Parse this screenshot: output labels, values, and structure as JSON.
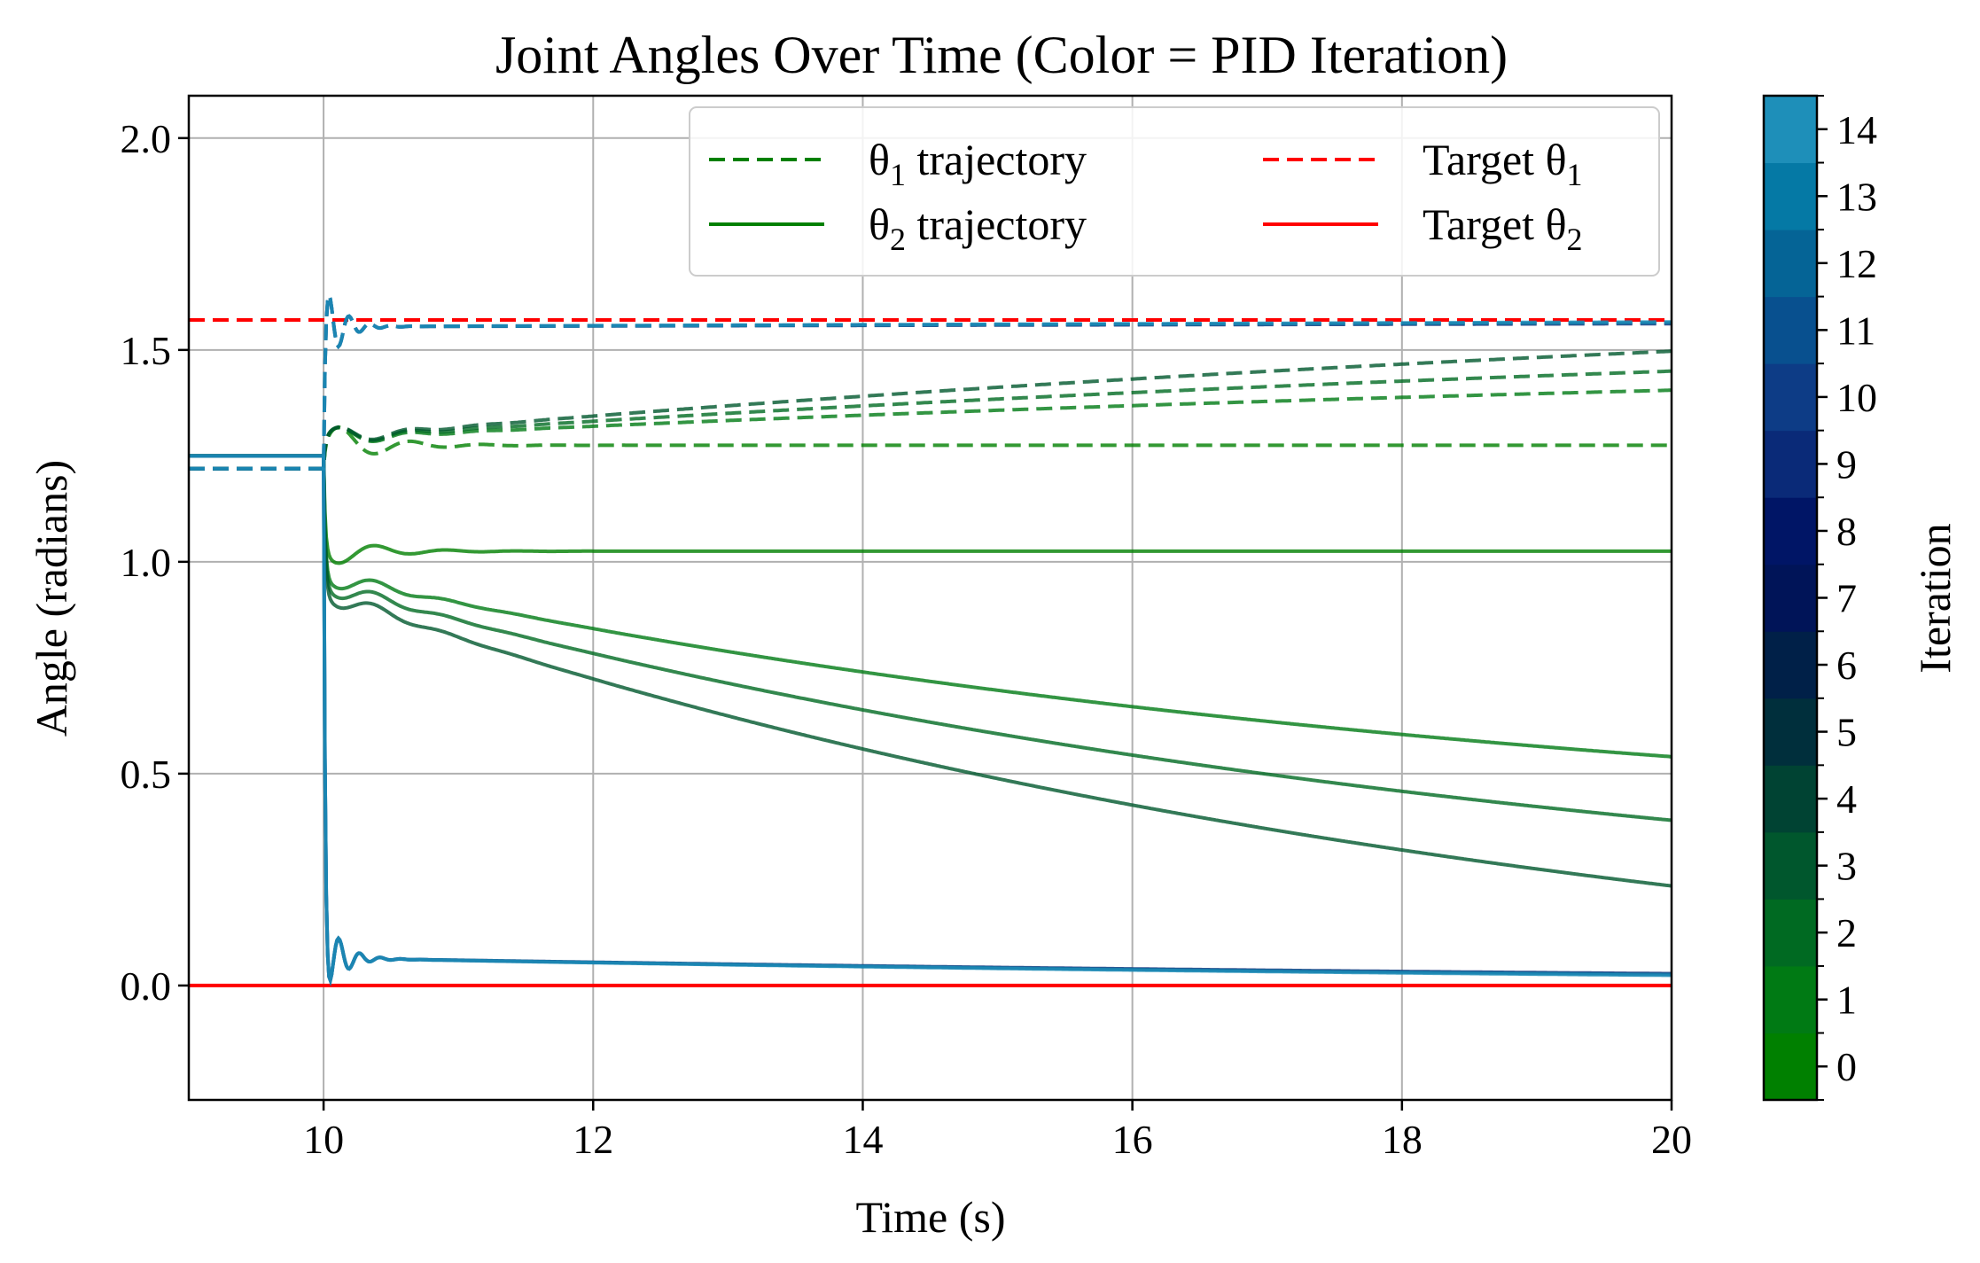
{
  "chart_data": {
    "type": "line",
    "title": "Joint Angles Over Time (Color = PID Iteration)",
    "xlabel": "Time (s)",
    "ylabel": "Angle (radians)",
    "xlim": [
      9.0,
      20.0
    ],
    "ylim": [
      -0.27,
      2.1
    ],
    "x_ticks": [
      10,
      12,
      14,
      16,
      18,
      20
    ],
    "x_tick_labels": [
      "10",
      "12",
      "14",
      "16",
      "18",
      "20"
    ],
    "y_ticks": [
      0.0,
      0.5,
      1.0,
      1.5,
      2.0
    ],
    "y_tick_labels": [
      "0.0",
      "0.5",
      "1.0",
      "1.5",
      "2.0"
    ],
    "grid": true,
    "targets": {
      "theta1": 1.5708,
      "theta2": 0.0
    },
    "initial": {
      "theta1": 1.22,
      "theta2": 1.25
    },
    "series": [
      {
        "iteration": 0,
        "theta1_final": 1.275,
        "theta2_final": 1.025,
        "theta1_slope": 0.0,
        "theta2_slope": 0.0
      },
      {
        "iteration": 1,
        "theta1_final": 1.405,
        "theta2_final": 0.54
      },
      {
        "iteration": 2,
        "theta1_final": 1.45,
        "theta2_final": 0.39
      },
      {
        "iteration": 3,
        "theta1_final": 1.497,
        "theta2_final": 0.235
      },
      {
        "iteration": 9,
        "theta1_final": 1.562,
        "theta2_final": 0.028
      },
      {
        "iteration": 12,
        "theta1_final": 1.564,
        "theta2_final": 0.026
      },
      {
        "iteration": 14,
        "theta1_final": 1.566,
        "theta2_final": 0.024
      }
    ],
    "legend": {
      "position": "top-right",
      "columns": 2,
      "entries": [
        {
          "prefix": "θ",
          "sub": "1",
          "suffix": " trajectory",
          "style": "dashed",
          "color": "#008000"
        },
        {
          "prefix": "θ",
          "sub": "2",
          "suffix": " trajectory",
          "style": "solid",
          "color": "#008000"
        },
        {
          "prefix": "Target θ",
          "sub": "1",
          "suffix": "",
          "style": "dashed",
          "color": "#ff0000"
        },
        {
          "prefix": "Target θ",
          "sub": "2",
          "suffix": "",
          "style": "solid",
          "color": "#ff0000"
        }
      ]
    },
    "colorbar": {
      "label": "Iteration",
      "min": 0,
      "max": 14,
      "ticks": [
        0,
        1,
        2,
        3,
        4,
        5,
        6,
        7,
        8,
        9,
        10,
        11,
        12,
        13,
        14
      ],
      "tick_labels": [
        "0",
        "1",
        "2",
        "3",
        "4",
        "5",
        "6",
        "7",
        "8",
        "9",
        "10",
        "11",
        "12",
        "13",
        "14"
      ],
      "colors": [
        "#008000",
        "#007a14",
        "#006a22",
        "#00572d",
        "#004333",
        "#002f3c",
        "#002048",
        "#001458",
        "#001566",
        "#0a2a78",
        "#0d3c86",
        "#08508f",
        "#056496",
        "#0579a5",
        "#1e8fb9"
      ]
    }
  }
}
